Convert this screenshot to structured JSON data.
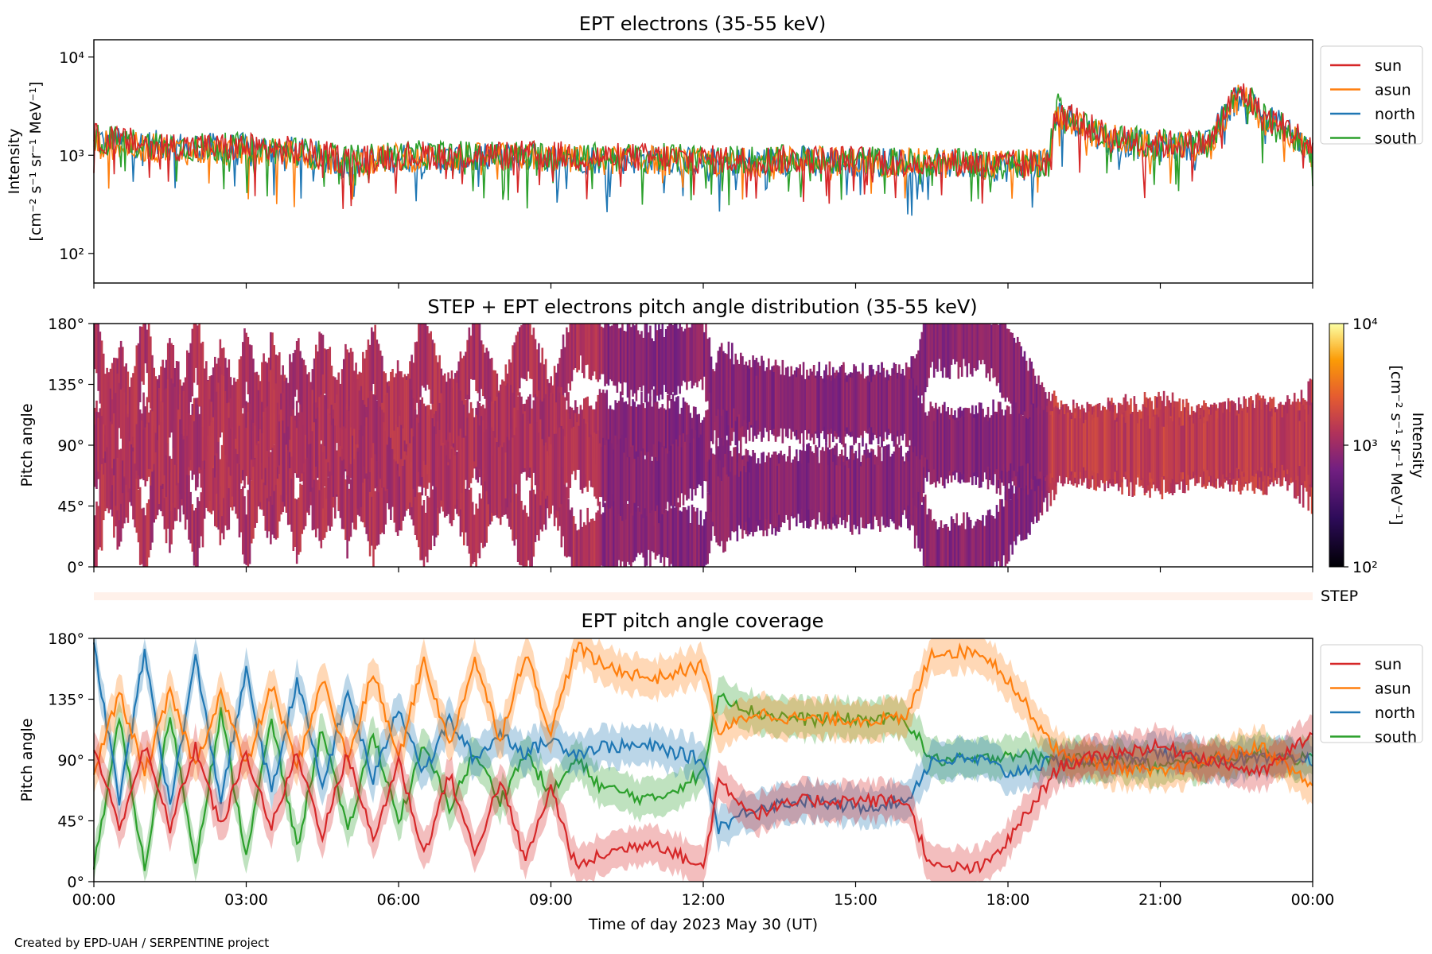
{
  "footer": "Created by EPD-UAH / SERPENTINE project",
  "colors": {
    "sun": "#d62728",
    "asun": "#ff7f0e",
    "north": "#1f77b4",
    "south": "#2ca02c"
  },
  "chart_data": [
    {
      "type": "line",
      "title": "EPT electrons (35-55 keV)",
      "ylabel_line1": "Intensity",
      "ylabel_line2": "[cm⁻² s⁻¹ sr⁻¹ MeV⁻¹]",
      "yscale": "log",
      "ylim": [
        50,
        15000
      ],
      "yticks": [
        {
          "v": 100,
          "label": "10²"
        },
        {
          "v": 1000,
          "label": "10³"
        },
        {
          "v": 10000,
          "label": "10⁴"
        }
      ],
      "xlim_hours": [
        0,
        24
      ],
      "legend": "right",
      "series": [
        {
          "name": "sun",
          "key": "sun",
          "x": [
            0,
            1,
            2,
            3,
            4,
            5,
            6,
            7,
            8,
            9,
            10,
            11,
            12,
            13,
            14,
            15,
            16,
            17,
            18,
            18.8,
            19,
            19.5,
            20,
            21,
            22,
            22.6,
            23,
            24
          ],
          "values": [
            1500,
            1300,
            1200,
            1200,
            1100,
            900,
            1000,
            1000,
            1000,
            1000,
            950,
            950,
            900,
            900,
            900,
            900,
            850,
            850,
            800,
            850,
            3000,
            2000,
            1500,
            1300,
            1300,
            4500,
            2500,
            1200
          ]
        },
        {
          "name": "asun",
          "key": "asun",
          "x": [
            0,
            1,
            2,
            3,
            4,
            5,
            6,
            7,
            8,
            9,
            10,
            11,
            12,
            13,
            14,
            15,
            16,
            17,
            18,
            18.8,
            19,
            19.5,
            20,
            21,
            22,
            22.6,
            23,
            24
          ],
          "values": [
            1300,
            1200,
            1100,
            1100,
            1000,
            850,
            950,
            950,
            950,
            950,
            900,
            900,
            850,
            850,
            900,
            850,
            850,
            800,
            800,
            850,
            2600,
            1800,
            1500,
            1200,
            1200,
            4000,
            2300,
            1000
          ]
        },
        {
          "name": "north",
          "key": "north",
          "x": [
            0,
            1,
            2,
            3,
            4,
            5,
            6,
            7,
            8,
            9,
            10,
            11,
            12,
            13,
            14,
            15,
            16,
            17,
            18,
            18.8,
            19,
            19.5,
            20,
            21,
            22,
            22.6,
            23,
            24
          ],
          "values": [
            1400,
            1300,
            1200,
            1200,
            1100,
            800,
            950,
            900,
            950,
            950,
            900,
            900,
            850,
            850,
            900,
            850,
            850,
            800,
            750,
            800,
            2800,
            1900,
            1400,
            1200,
            1300,
            4200,
            2600,
            1000
          ]
        },
        {
          "name": "south",
          "key": "south",
          "x": [
            0,
            1,
            2,
            3,
            4,
            5,
            6,
            7,
            8,
            9,
            10,
            11,
            12,
            13,
            14,
            15,
            16,
            17,
            18,
            18.8,
            19,
            19.5,
            20,
            21,
            22,
            22.6,
            23,
            24
          ],
          "values": [
            1500,
            1300,
            1200,
            1200,
            1100,
            900,
            1000,
            1000,
            1000,
            1000,
            950,
            950,
            900,
            900,
            900,
            900,
            850,
            850,
            800,
            850,
            3300,
            2000,
            1500,
            1300,
            1300,
            4600,
            2500,
            1100
          ]
        }
      ]
    },
    {
      "type": "heatmap",
      "title": "STEP + EPT electrons pitch angle distribution (35-55 keV)",
      "ylabel": "Pitch angle",
      "ylim": [
        0,
        180
      ],
      "yticks": [
        "0°",
        "45°",
        "90°",
        "135°",
        "180°"
      ],
      "xlim_hours": [
        0,
        24
      ],
      "colorbar": {
        "label_line1": "Intensity",
        "label_line2": "[cm⁻² s⁻¹ sr⁻¹ MeV⁻¹]",
        "range": [
          100,
          10000
        ],
        "ticks": [
          "10²",
          "10³",
          "10⁴"
        ],
        "colormap": "inferno"
      },
      "step_label": "STEP",
      "coverage_hours": [
        {
          "x": [
            0,
            10
          ],
          "intensity": 1200
        },
        {
          "x": [
            10,
            18.8
          ],
          "intensity": 800
        },
        {
          "x": [
            18.8,
            24
          ],
          "intensity": 1500
        }
      ]
    },
    {
      "type": "line",
      "title": "EPT pitch angle coverage",
      "ylabel": "Pitch angle",
      "xlabel": "Time of day 2023 May 30 (UT)",
      "ylim": [
        0,
        180
      ],
      "yticks": [
        "0°",
        "45°",
        "90°",
        "135°",
        "180°"
      ],
      "xticks": [
        "00:00",
        "03:00",
        "06:00",
        "09:00",
        "12:00",
        "15:00",
        "18:00",
        "21:00",
        "00:00"
      ],
      "xlim_hours": [
        0,
        24
      ],
      "legend": "right",
      "series": [
        {
          "name": "sun",
          "key": "sun",
          "x": [
            0,
            0.5,
            1,
            1.5,
            2,
            2.5,
            3,
            3.5,
            4,
            4.5,
            5,
            5.5,
            6,
            6.5,
            7,
            7.5,
            8,
            8.5,
            9,
            9.5,
            10,
            11,
            12,
            12.3,
            13,
            14,
            15,
            16,
            16.5,
            17,
            17.5,
            18,
            19,
            20,
            21,
            22,
            23,
            24
          ],
          "values": [
            100,
            40,
            100,
            40,
            100,
            40,
            95,
            40,
            95,
            35,
            95,
            30,
            90,
            20,
            80,
            20,
            75,
            15,
            70,
            10,
            20,
            30,
            10,
            75,
            50,
            60,
            60,
            60,
            10,
            10,
            10,
            30,
            85,
            95,
            100,
            90,
            80,
            110
          ]
        },
        {
          "name": "asun",
          "key": "asun",
          "x": [
            0,
            0.5,
            1,
            1.5,
            2,
            2.5,
            3,
            3.5,
            4,
            4.5,
            5,
            5.5,
            6,
            6.5,
            7,
            7.5,
            8,
            8.5,
            9,
            9.5,
            10,
            11,
            12,
            12.3,
            13,
            14,
            15,
            16,
            16.5,
            17,
            17.5,
            18,
            19,
            20,
            21,
            22,
            23,
            24
          ],
          "values": [
            80,
            140,
            80,
            140,
            85,
            140,
            85,
            145,
            85,
            150,
            90,
            155,
            90,
            165,
            100,
            165,
            105,
            170,
            110,
            175,
            160,
            150,
            160,
            110,
            125,
            120,
            120,
            120,
            170,
            170,
            170,
            150,
            95,
            85,
            80,
            90,
            100,
            70
          ]
        },
        {
          "name": "north",
          "key": "north",
          "x": [
            0,
            0.5,
            1,
            1.5,
            2,
            2.5,
            3,
            3.5,
            4,
            4.5,
            5,
            5.5,
            6,
            6.5,
            7,
            7.5,
            8,
            8.5,
            9,
            9.5,
            10,
            11,
            12,
            12.3,
            13,
            14,
            15,
            16,
            16.5,
            17,
            17.5,
            18,
            19,
            20,
            21,
            22,
            23,
            24
          ],
          "values": [
            175,
            60,
            170,
            55,
            165,
            60,
            155,
            65,
            150,
            70,
            140,
            75,
            130,
            80,
            120,
            90,
            110,
            95,
            105,
            95,
            100,
            100,
            90,
            40,
            55,
            60,
            55,
            60,
            90,
            90,
            90,
            80,
            90,
            90,
            95,
            90,
            90,
            90
          ]
        },
        {
          "name": "south",
          "key": "south",
          "x": [
            0,
            0.5,
            1,
            1.5,
            2,
            2.5,
            3,
            3.5,
            4,
            4.5,
            5,
            5.5,
            6,
            6.5,
            7,
            7.5,
            8,
            8.5,
            9,
            9.5,
            10,
            11,
            12,
            12.3,
            13,
            14,
            15,
            16,
            16.5,
            17,
            17.5,
            18,
            19,
            20,
            21,
            22,
            23,
            24
          ],
          "values": [
            10,
            120,
            10,
            125,
            15,
            125,
            20,
            120,
            25,
            115,
            35,
            110,
            45,
            100,
            55,
            95,
            60,
            95,
            65,
            90,
            70,
            60,
            80,
            140,
            125,
            120,
            120,
            120,
            90,
            90,
            90,
            95,
            90,
            90,
            85,
            90,
            95,
            90
          ]
        }
      ]
    }
  ]
}
